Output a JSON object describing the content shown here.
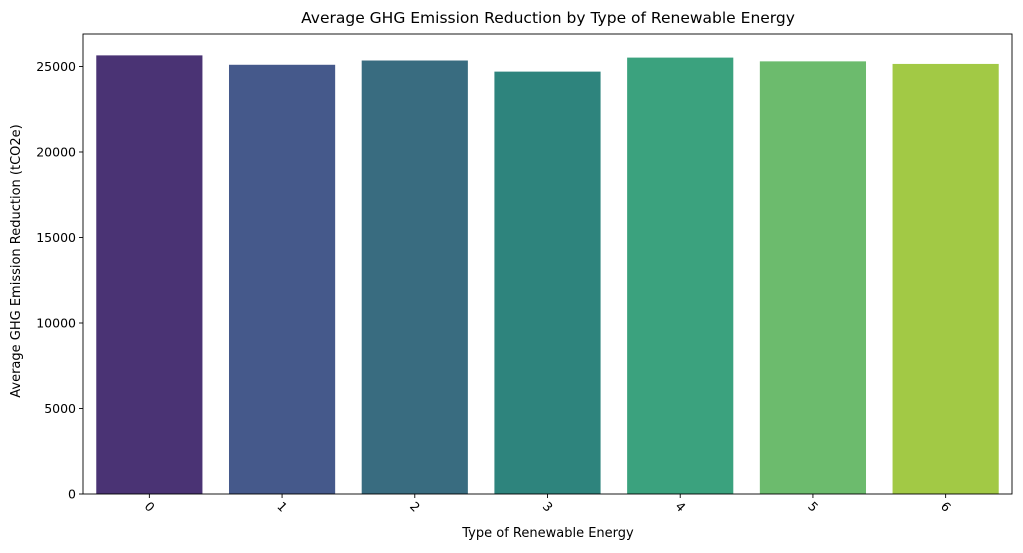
{
  "chart_data": {
    "type": "bar",
    "title": "Average GHG Emission Reduction by Type of Renewable Energy",
    "xlabel": "Type of Renewable Energy",
    "ylabel": "Average GHG Emission Reduction (tCO2e)",
    "categories": [
      "0",
      "1",
      "2",
      "3",
      "4",
      "5",
      "6"
    ],
    "values": [
      25650,
      25100,
      25350,
      24700,
      25520,
      25300,
      25150
    ],
    "ylim": [
      0,
      26900
    ],
    "yticks": [
      0,
      5000,
      10000,
      15000,
      20000,
      25000
    ],
    "ytick_labels": [
      "0",
      "5000",
      "10000",
      "15000",
      "20000",
      "25000"
    ],
    "xtick_rotation_deg": 45,
    "grid": false,
    "legend": "none",
    "colors": [
      "#4a3374",
      "#45598b",
      "#396c80",
      "#2e847d",
      "#3ba27e",
      "#6cbb6d",
      "#a2c945"
    ]
  }
}
